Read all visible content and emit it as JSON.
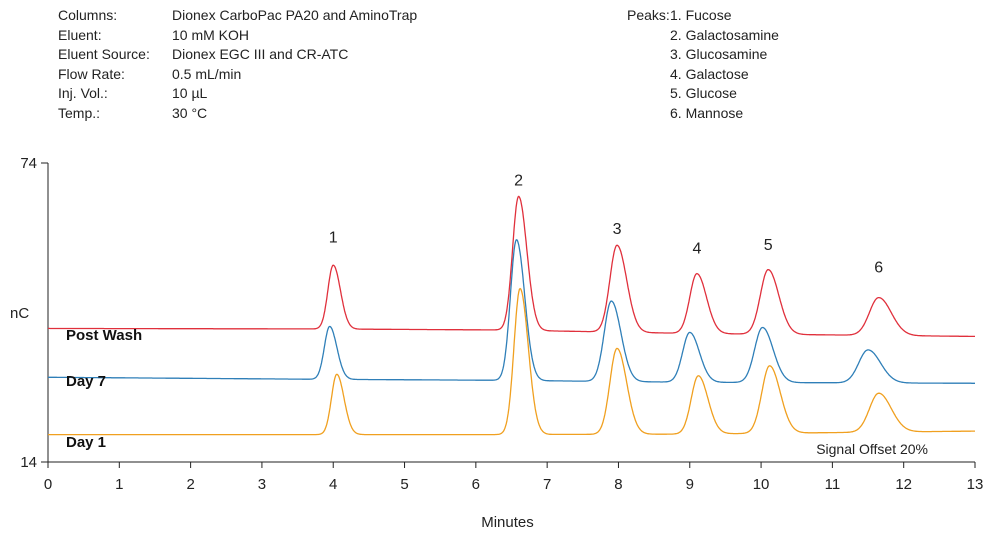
{
  "conditions": [
    {
      "label": "Columns:",
      "value": "Dionex CarboPac PA20 and AminoTrap"
    },
    {
      "label": "Eluent:",
      "value": "10 mM KOH"
    },
    {
      "label": "Eluent Source:",
      "value": "Dionex EGC III and CR-ATC"
    },
    {
      "label": "Flow Rate:",
      "value": "0.5 mL/min"
    },
    {
      "label": "Inj. Vol.:",
      "value": "10 µL"
    },
    {
      "label": "Temp.:",
      "value": "30 °C"
    }
  ],
  "peaks_legend": {
    "label": "Peaks:",
    "items": [
      "1. Fucose",
      "2. Galactosamine",
      "3. Glucosamine",
      "4. Galactose",
      "5. Glucose",
      "6. Mannose"
    ]
  },
  "chart_data": {
    "type": "line",
    "xlabel": "Minutes",
    "ylabel": "nC",
    "xlim": [
      0,
      13
    ],
    "ylim": [
      14,
      74
    ],
    "x_ticks": [
      "0",
      "1",
      "2",
      "3",
      "4",
      "5",
      "6",
      "7",
      "8",
      "9",
      "10",
      "11",
      "12",
      "13"
    ],
    "y_ticks": [
      "74",
      "14"
    ],
    "annotation": "Signal Offset 20%",
    "peak_labels": [
      {
        "label": "1",
        "x": 4.0,
        "y": 58.0
      },
      {
        "label": "2",
        "x": 6.6,
        "y": 69.5
      },
      {
        "label": "3",
        "x": 7.98,
        "y": 59.8
      },
      {
        "label": "4",
        "x": 9.1,
        "y": 55.8
      },
      {
        "label": "5",
        "x": 10.1,
        "y": 56.5
      },
      {
        "label": "6",
        "x": 11.65,
        "y": 52.0
      }
    ],
    "series": [
      {
        "name": "Post Wash",
        "color": "#e0303c",
        "baseline": [
          [
            0,
            40.8
          ],
          [
            3.8,
            40.7
          ],
          [
            6.3,
            40.5
          ],
          [
            9,
            39.8
          ],
          [
            13,
            39.2
          ]
        ],
        "peaks": [
          {
            "rt": 4.0,
            "apex": 53.5,
            "sigma": 0.075
          },
          {
            "rt": 6.6,
            "apex": 67.3,
            "sigma": 0.085
          },
          {
            "rt": 7.98,
            "apex": 57.5,
            "sigma": 0.1
          },
          {
            "rt": 9.1,
            "apex": 51.8,
            "sigma": 0.1
          },
          {
            "rt": 10.1,
            "apex": 52.6,
            "sigma": 0.11
          },
          {
            "rt": 11.65,
            "apex": 47.0,
            "sigma": 0.13
          }
        ]
      },
      {
        "name": "Day 7",
        "color": "#2f7fb8",
        "baseline": [
          [
            0,
            31.0
          ],
          [
            3.8,
            30.6
          ],
          [
            6.3,
            30.4
          ],
          [
            9,
            30.0
          ],
          [
            13,
            29.8
          ]
        ],
        "peaks": [
          {
            "rt": 3.95,
            "apex": 41.2,
            "sigma": 0.075
          },
          {
            "rt": 6.57,
            "apex": 58.6,
            "sigma": 0.085
          },
          {
            "rt": 7.9,
            "apex": 46.3,
            "sigma": 0.1
          },
          {
            "rt": 9.0,
            "apex": 40.0,
            "sigma": 0.1
          },
          {
            "rt": 10.02,
            "apex": 41.0,
            "sigma": 0.11
          },
          {
            "rt": 11.5,
            "apex": 36.5,
            "sigma": 0.13
          }
        ]
      },
      {
        "name": "Day 1",
        "color": "#f0a020",
        "baseline": [
          [
            0,
            19.5
          ],
          [
            3.8,
            19.5
          ],
          [
            6.3,
            19.5
          ],
          [
            9,
            19.6
          ],
          [
            13,
            20.2
          ]
        ],
        "peaks": [
          {
            "rt": 4.05,
            "apex": 31.6,
            "sigma": 0.075
          },
          {
            "rt": 6.62,
            "apex": 48.8,
            "sigma": 0.085
          },
          {
            "rt": 7.98,
            "apex": 36.8,
            "sigma": 0.1
          },
          {
            "rt": 9.12,
            "apex": 31.3,
            "sigma": 0.1
          },
          {
            "rt": 10.12,
            "apex": 33.3,
            "sigma": 0.11
          },
          {
            "rt": 11.65,
            "apex": 27.8,
            "sigma": 0.13
          }
        ]
      }
    ]
  }
}
